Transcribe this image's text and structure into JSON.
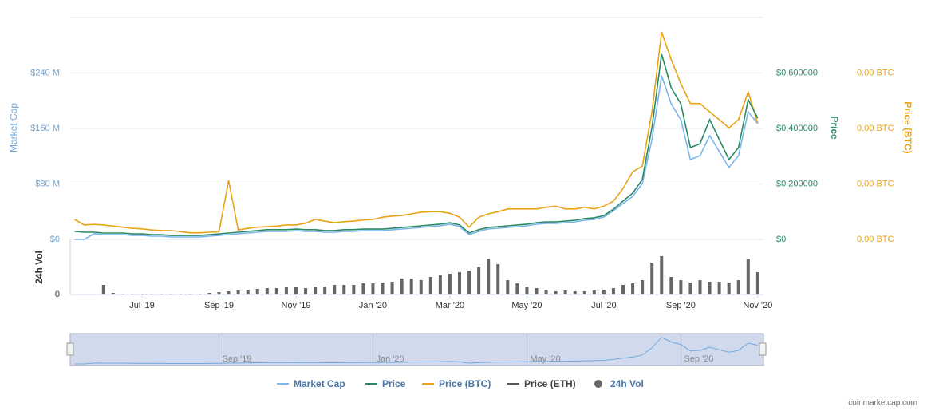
{
  "chart_data": {
    "type": "line",
    "categories": [
      null,
      null,
      null,
      null,
      null,
      null,
      null,
      "Jul '19",
      null,
      null,
      null,
      null,
      null,
      null,
      null,
      "Sep '19",
      null,
      null,
      null,
      null,
      null,
      null,
      null,
      "Nov '19",
      null,
      null,
      null,
      null,
      null,
      null,
      null,
      "Jan '20",
      null,
      null,
      null,
      null,
      null,
      null,
      null,
      "Mar '20",
      null,
      null,
      null,
      null,
      null,
      null,
      null,
      "May '20",
      null,
      null,
      null,
      null,
      null,
      null,
      null,
      "Jul '20",
      null,
      null,
      null,
      null,
      null,
      null,
      null,
      "Sep '20",
      null,
      null,
      null,
      null,
      null,
      null,
      null,
      "Nov '20"
    ],
    "series": [
      {
        "name": "Market Cap",
        "color": "#7cb5ec",
        "axis": "y",
        "values": [
          0,
          0,
          8100000,
          6900000,
          6900000,
          6900000,
          5800000,
          5800000,
          4600000,
          4600000,
          3500000,
          3500000,
          3500000,
          3500000,
          4600000,
          5800000,
          6900000,
          8100000,
          9200000,
          10400000,
          11500000,
          11500000,
          11500000,
          12700000,
          11500000,
          11500000,
          10400000,
          10400000,
          11500000,
          11500000,
          12700000,
          12700000,
          12700000,
          13800000,
          15000000,
          16100000,
          17300000,
          18400000,
          19600000,
          21900000,
          18400000,
          6900000,
          11500000,
          15000000,
          16100000,
          17300000,
          18400000,
          19600000,
          21900000,
          23000000,
          23000000,
          24200000,
          25300000,
          27600000,
          28800000,
          32200000,
          41400000,
          51800000,
          62200000,
          80600000,
          143900000,
          236000000,
          195700000,
          172700000,
          115100000,
          120900000,
          149600000,
          126600000,
          103600000,
          120900000,
          184200000,
          166900000
        ]
      },
      {
        "name": "Price",
        "color": "#2a8a64",
        "axis": "y2",
        "values": [
          0.029,
          0.026,
          0.026,
          0.023,
          0.023,
          0.023,
          0.02,
          0.02,
          0.017,
          0.017,
          0.014,
          0.014,
          0.014,
          0.014,
          0.017,
          0.02,
          0.023,
          0.026,
          0.029,
          0.032,
          0.035,
          0.035,
          0.035,
          0.037,
          0.035,
          0.035,
          0.032,
          0.032,
          0.035,
          0.035,
          0.037,
          0.037,
          0.037,
          0.04,
          0.043,
          0.046,
          0.049,
          0.052,
          0.055,
          0.06,
          0.052,
          0.023,
          0.035,
          0.043,
          0.046,
          0.049,
          0.052,
          0.055,
          0.06,
          0.063,
          0.063,
          0.066,
          0.069,
          0.075,
          0.078,
          0.086,
          0.109,
          0.138,
          0.167,
          0.216,
          0.403,
          0.668,
          0.547,
          0.489,
          0.331,
          0.345,
          0.432,
          0.36,
          0.288,
          0.331,
          0.504,
          0.437
        ]
      },
      {
        "name": "Price (BTC)",
        "color": "#e8a317",
        "axis": "y3",
        "values": [
          3.6e-06,
          2.6e-06,
          2.7e-06,
          2.6e-06,
          2.4e-06,
          2.2e-06,
          2e-06,
          1.9e-06,
          1.7e-06,
          1.6e-06,
          1.6e-06,
          1.4e-06,
          1.2e-06,
          1.2e-06,
          1.3e-06,
          1.4e-06,
          1.06e-05,
          1.7e-06,
          2e-06,
          2.2e-06,
          2.3e-06,
          2.4e-06,
          2.6e-06,
          2.6e-06,
          2.9e-06,
          3.6e-06,
          3.3e-06,
          3e-06,
          3.2e-06,
          3.3e-06,
          3.5e-06,
          3.6e-06,
          4e-06,
          4.2e-06,
          4.3e-06,
          4.6e-06,
          4.9e-06,
          5e-06,
          5e-06,
          4.7e-06,
          4e-06,
          2.2e-06,
          4e-06,
          4.6e-06,
          5e-06,
          5.5e-06,
          5.5e-06,
          5.5e-06,
          5.5e-06,
          5.8e-06,
          6e-06,
          5.5e-06,
          5.5e-06,
          5.8e-06,
          5.5e-06,
          6e-06,
          6.9e-06,
          9.2e-06,
          1.22e-05,
          1.32e-05,
          2.3e-05,
          3.74e-05,
          3.24e-05,
          2.81e-05,
          2.45e-05,
          2.45e-05,
          2.3e-05,
          2.16e-05,
          2.01e-05,
          2.16e-05,
          2.66e-05,
          2.09e-05
        ]
      },
      {
        "name": "Price (ETH)",
        "color": "#555555",
        "visible": false
      },
      {
        "name": "24h Vol",
        "color": "#666666",
        "axis": "vol",
        "type": "bar",
        "values": [
          0,
          0,
          0,
          1200000,
          200000,
          100000,
          100000,
          100000,
          100000,
          100000,
          100000,
          100000,
          100000,
          100000,
          200000,
          300000,
          400000,
          500000,
          600000,
          700000,
          800000,
          800000,
          900000,
          900000,
          800000,
          1000000,
          1000000,
          1200000,
          1200000,
          1200000,
          1400000,
          1400000,
          1500000,
          1600000,
          2000000,
          2000000,
          1800000,
          2200000,
          2400000,
          2600000,
          2800000,
          3000000,
          3500000,
          4500000,
          3800000,
          1800000,
          1400000,
          1000000,
          800000,
          600000,
          400000,
          500000,
          400000,
          400000,
          500000,
          600000,
          800000,
          1200000,
          1400000,
          1800000,
          4000000,
          4800000,
          2200000,
          1800000,
          1500000,
          1800000,
          1600000,
          1600000,
          1500000,
          1800000,
          4500000,
          2800000
        ]
      }
    ],
    "ylabel": "Market Cap",
    "ylim": [
      0,
      320000000
    ],
    "yticks": [
      {
        "value": 0,
        "label": "$0"
      },
      {
        "value": 80000000,
        "label": "$80 M"
      },
      {
        "value": 160000000,
        "label": "$160 M"
      },
      {
        "value": 240000000,
        "label": "$240 M"
      }
    ],
    "y2label": "Price",
    "y2lim": [
      0,
      0.8
    ],
    "y2ticks": [
      {
        "value": 0,
        "label": "$0"
      },
      {
        "value": 0.2,
        "label": "$0.200000"
      },
      {
        "value": 0.4,
        "label": "$0.400000"
      },
      {
        "value": 0.6,
        "label": "$0.600000"
      }
    ],
    "y3label": "Price (BTC)",
    "y3lim": [
      0,
      4e-05
    ],
    "y3ticks": [
      {
        "value": 0,
        "label": "0.00 BTC"
      },
      {
        "value": 1e-05,
        "label": "0.00 BTC"
      },
      {
        "value": 2e-05,
        "label": "0.00 BTC"
      },
      {
        "value": 3e-05,
        "label": "0.00 BTC"
      }
    ],
    "vollabel": "24h Vol",
    "vollim": [
      0,
      6000000
    ],
    "volticks": [
      0
    ],
    "grid": true,
    "navigator": {
      "labels": [
        "Sep '19",
        "Jan '20",
        "May '20",
        "Sep '20"
      ]
    },
    "source": "coinmarketcap.com"
  }
}
